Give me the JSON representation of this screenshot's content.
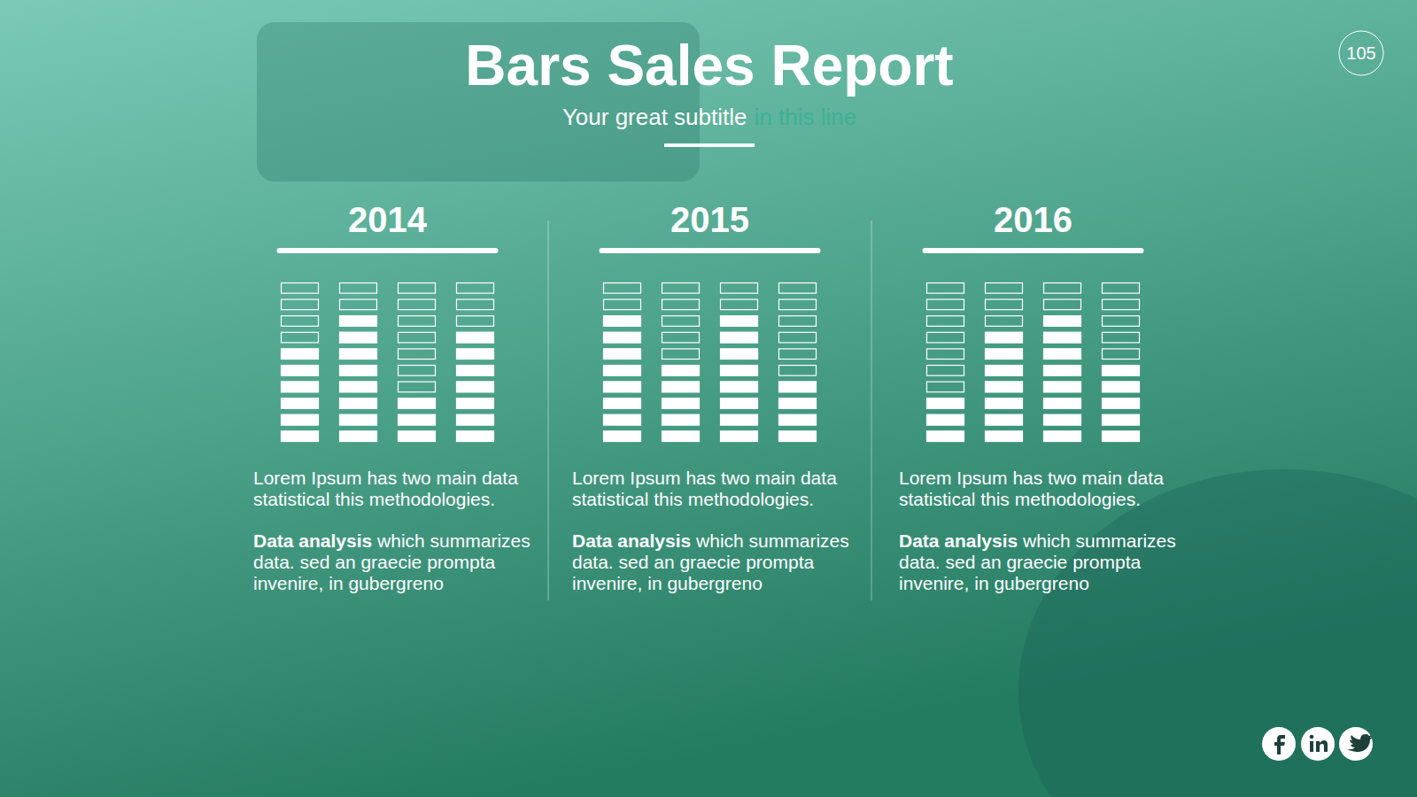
{
  "title": "Bars Sales Report",
  "subtitle": "Your great subtitle",
  "subtitle_highlight": "in this line",
  "page_number": 105,
  "chart_data": [
    {
      "type": "bar",
      "title": "2014",
      "categories": [
        null,
        null,
        null,
        null
      ],
      "values": [
        6,
        8,
        3,
        7
      ],
      "color": "#ffffff",
      "ylim": [
        0,
        10
      ],
      "tick_labels": false
    },
    {
      "type": "bar",
      "title": "2015",
      "categories": [
        null,
        null,
        null,
        null
      ],
      "values": [
        8,
        5,
        8,
        4
      ],
      "color": "#ffffff",
      "ylim": [
        0,
        10
      ],
      "tick_labels": false
    },
    {
      "type": "bar",
      "title": "2016",
      "categories": [
        null,
        null,
        null,
        null
      ],
      "values": [
        3,
        7,
        8,
        5
      ],
      "color": "#ffffff",
      "ylim": [
        0,
        10
      ],
      "tick_labels": false
    }
  ],
  "panels": [
    {
      "description": "Lorem Ipsum has two main data statistical this methodologies.",
      "bold": "Data analysis",
      "rest": "which summarizes data. sed an graecie prompta invenire, in gubergreno"
    },
    {
      "description": "Lorem Ipsum has two main data statistical this methodologies.",
      "bold": "Data analysis",
      "rest": "which summarizes data. sed an graecie prompta invenire, in gubergreno"
    },
    {
      "description": "Lorem Ipsum has two main data statistical this methodologies.",
      "bold": "Data analysis",
      "rest": "which summarizes data. sed an graecie prompta invenire, in gubergreno"
    }
  ]
}
